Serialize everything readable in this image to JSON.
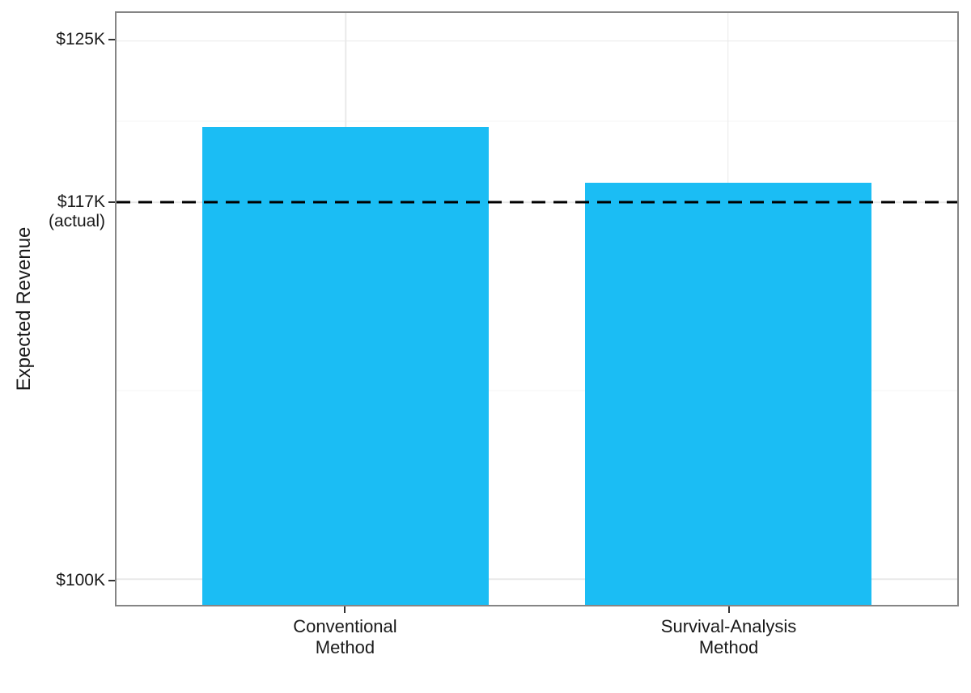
{
  "chart_data": {
    "type": "bar",
    "title": "",
    "xlabel": "",
    "ylabel": "Expected Revenue",
    "categories": [
      "Conventional\nMethod",
      "Survival-Analysis\nMethod"
    ],
    "values": [
      121.0,
      118.4
    ],
    "value_unit": "K USD",
    "ylim": [
      98.8,
      126.3
    ],
    "y_ticks": [
      {
        "label": "$125K",
        "sublabel": "",
        "value": 125
      },
      {
        "label": "$117K",
        "sublabel": "(actual)",
        "value": 117.5
      },
      {
        "label": "$100K",
        "sublabel": "",
        "value": 100
      }
    ],
    "y_minor_gridlines": [
      121.25,
      108.75
    ],
    "reference_line": {
      "value": 117.5,
      "label": "$117K (actual)",
      "style": "dashed"
    },
    "grid": true,
    "legend": "none"
  },
  "colors": {
    "bar_fill": "#1BBDF4",
    "reference_line": "#000000",
    "grid_major": "#E9E9E9",
    "grid_minor": "#F6F6F6",
    "panel_border": "#858585",
    "tick_mark": "#333333",
    "text": "#1A1A1A"
  }
}
